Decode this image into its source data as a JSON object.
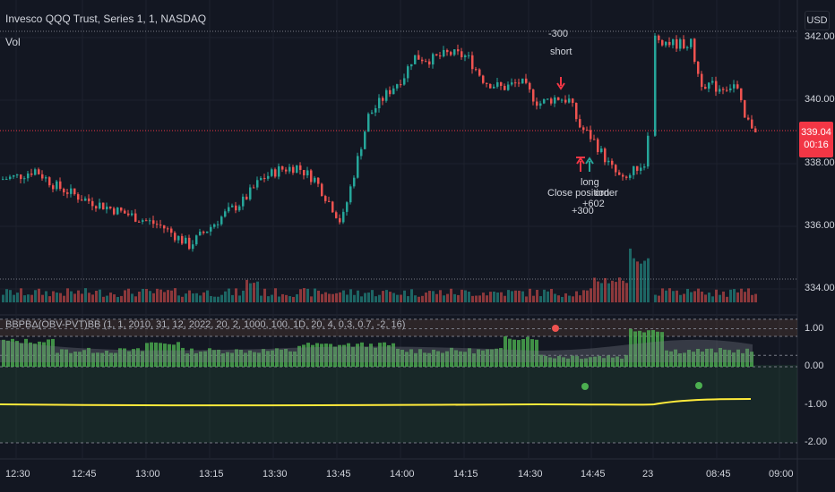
{
  "header": {
    "title": "Invesco QQQ Trust, Series 1, 1, NASDAQ",
    "volume_label": "Vol",
    "currency": "USD"
  },
  "indicator": {
    "title": "BBPBΔ(OBV-PVT)BB (1, 1, 2010, 31, 12, 2022, 20, 2, 1000, 100, 1D, 20, 4, 0.3, 0.7, -2, 16)"
  },
  "price_axis": {
    "labels": [
      "342.00",
      "340.00",
      "338.00",
      "336.00",
      "334.00"
    ],
    "current_price": "339.04",
    "countdown": "00:16"
  },
  "indicator_axis": {
    "labels": [
      "1.00",
      "0.00",
      "-1.00",
      "-2.00"
    ]
  },
  "time_axis": {
    "labels": [
      "12:30",
      "12:45",
      "13:00",
      "13:15",
      "13:30",
      "13:45",
      "14:00",
      "14:15",
      "14:30",
      "14:45",
      "23",
      "08:45",
      "09:00"
    ]
  },
  "annotations": {
    "short_qty": "-300",
    "short_label": "short",
    "close_label": "Close position",
    "close_qty": "+300",
    "order_label": "order",
    "long_label": "long",
    "long_qty": "+602"
  },
  "colors": {
    "background": "#131722",
    "up": "#26a69a",
    "down": "#ef5350",
    "indicator_green": "#4caf50",
    "indicator_line": "#ffeb3b",
    "price_line": "#f23645"
  }
}
